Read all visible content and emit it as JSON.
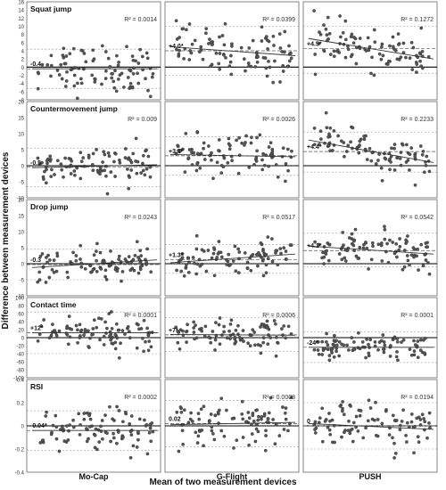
{
  "figure": {
    "ylabel": "Difference between measurement devices",
    "xlabel": "Mean of two measurement devices",
    "columns": [
      "Mo-Cap",
      "G-Flight",
      "PUSH"
    ]
  },
  "chart_data": {
    "type": "scatter",
    "rows": [
      {
        "name": "Squat jump",
        "ylim": [
          -8,
          16
        ],
        "yticks": [
          16,
          14,
          12,
          10,
          8,
          6,
          4,
          2,
          0,
          -2,
          -4,
          -6,
          -8
        ],
        "panels": [
          {
            "device": "Mo-Cap",
            "r2": "R² = 0.0014",
            "bias_label": "-0.4",
            "bias": -0.4,
            "loa": [
              -5.2,
              4.4
            ],
            "trend": [
              -0.4,
              -0.4
            ],
            "center": 0,
            "spread": 3
          },
          {
            "device": "G-Flight",
            "r2": "R² = 0.0399",
            "bias_label": "+4.0*",
            "bias": 4.0,
            "loa": [
              -2.0,
              10.0
            ],
            "trend": [
              5.0,
              2.8
            ],
            "center": 4,
            "spread": 3
          },
          {
            "device": "PUSH",
            "r2": "R² = 0.1272",
            "bias_label": "+4.5*",
            "bias": 4.5,
            "loa": [
              -1.5,
              10.0
            ],
            "trend": [
              7.0,
              2.0
            ],
            "center": 4.5,
            "spread": 2.5
          }
        ]
      },
      {
        "name": "Countermovement jump",
        "ylim": [
          -10,
          20
        ],
        "yticks": [
          20,
          15,
          10,
          5,
          0,
          -5,
          -10
        ],
        "panels": [
          {
            "device": "Mo-Cap",
            "r2": "R² = 0.009",
            "bias_label": "-0.5",
            "bias": -0.5,
            "loa": [
              -6.5,
              5.5
            ],
            "trend": [
              -0.6,
              0.3
            ],
            "center": 0,
            "spread": 3
          },
          {
            "device": "G-Flight",
            "r2": "R² = 0.0026",
            "bias_label": "+3.1*",
            "bias": 3.1,
            "loa": [
              -3.0,
              9.0
            ],
            "trend": [
              3.5,
              2.8
            ],
            "center": 3,
            "spread": 3
          },
          {
            "device": "PUSH",
            "r2": "R² = 0.2233",
            "bias_label": "+4.4*",
            "bias": 4.4,
            "loa": [
              -2.0,
              10.5
            ],
            "trend": [
              8.0,
              1.0
            ],
            "center": 4.4,
            "spread": 3
          }
        ]
      },
      {
        "name": "Drop jump",
        "ylim": [
          -10,
          20
        ],
        "yticks": [
          20,
          15,
          10,
          5,
          0,
          -5,
          -10
        ],
        "panels": [
          {
            "device": "Mo-Cap",
            "r2": "R² = 0.0243",
            "bias_label": "-0.3",
            "bias": -0.3,
            "loa": [
              -5.0,
              4.5
            ],
            "trend": [
              -1.2,
              1.2
            ],
            "center": 0,
            "spread": 2.5
          },
          {
            "device": "G-Flight",
            "r2": "R² = 0.0517",
            "bias_label": "+1.3*",
            "bias": 1.3,
            "loa": [
              -3.0,
              6.0
            ],
            "trend": [
              0.3,
              3.0
            ],
            "center": 1.3,
            "spread": 2.5
          },
          {
            "device": "PUSH",
            "r2": "R² = 0.0542",
            "bias_label": "+4.1*",
            "bias": 4.1,
            "loa": [
              -1.0,
              9.5
            ],
            "trend": [
              5.5,
              3.0
            ],
            "center": 4,
            "spread": 3
          }
        ]
      },
      {
        "name": "Contact time",
        "ylim": [
          -100,
          100
        ],
        "yticks": [
          100,
          80,
          60,
          40,
          20,
          0,
          -20,
          -40,
          -60,
          -80,
          -100
        ],
        "panels": [
          {
            "device": "Mo-Cap",
            "r2": "R² = 0.0001",
            "bias_label": "+12*",
            "bias": 12,
            "loa": [
              -40,
              64
            ],
            "trend": [
              12,
              12
            ],
            "center": 12,
            "spread": 22
          },
          {
            "device": "G-Flight",
            "r2": "R² = 0.0006",
            "bias_label": "+7*",
            "bias": 7,
            "loa": [
              -35,
              50
            ],
            "trend": [
              8,
              6
            ],
            "center": 7,
            "spread": 20
          },
          {
            "device": "PUSH",
            "r2": "R² = 0.0001",
            "bias_label": "-24*",
            "bias": -24,
            "loa": [
              -62,
              14
            ],
            "trend": [
              -24,
              -24
            ],
            "center": -24,
            "spread": 16
          }
        ]
      },
      {
        "name": "RSI",
        "ylim": [
          -0.4,
          0.4
        ],
        "yticks": [
          0.4,
          0.2,
          0,
          -0.2,
          -0.4
        ],
        "panels": [
          {
            "device": "Mo-Cap",
            "r2": "R² = 0.0002",
            "bias_label": "-0.04*",
            "bias": -0.04,
            "loa": [
              -0.21,
              0.13
            ],
            "trend": [
              -0.04,
              -0.04
            ],
            "center": -0.04,
            "spread": 0.09
          },
          {
            "device": "G-Flight",
            "r2": "R² = 0.0008",
            "bias_label": "0.02",
            "bias": 0.02,
            "loa": [
              -0.18,
              0.22
            ],
            "trend": [
              0.01,
              0.03
            ],
            "center": 0.02,
            "spread": 0.1
          },
          {
            "device": "PUSH",
            "r2": "R² = 0.0194",
            "bias_label": "0",
            "bias": 0.0,
            "loa": [
              -0.2,
              0.2
            ],
            "trend": [
              0.02,
              -0.03
            ],
            "center": 0,
            "spread": 0.1
          }
        ]
      }
    ]
  }
}
